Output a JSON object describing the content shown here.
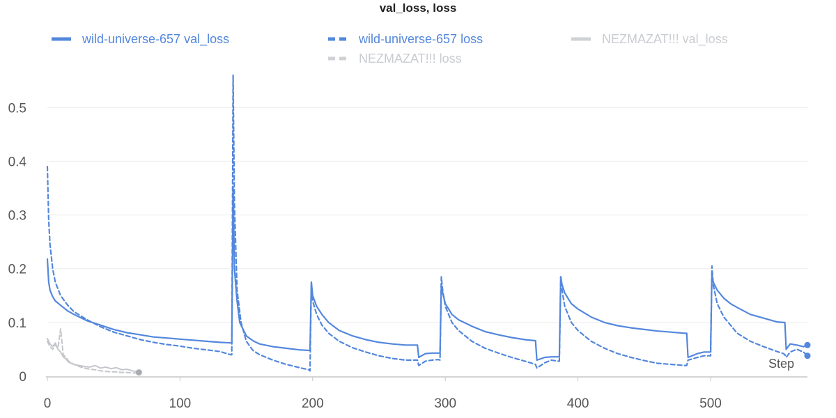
{
  "chart_data": {
    "type": "line",
    "title": "val_loss, loss",
    "xlabel": "Step",
    "ylabel": "",
    "xlim": [
      0,
      573
    ],
    "ylim": [
      0,
      0.56
    ],
    "x_ticks": [
      0,
      100,
      200,
      300,
      400,
      500
    ],
    "y_ticks": [
      0,
      0.1,
      0.2,
      0.3,
      0.4,
      0.5
    ],
    "y_tick_labels": [
      "0",
      "0.1",
      "0.2",
      "0.3",
      "0.4",
      "0.5"
    ],
    "grid": true,
    "legend_position": "top",
    "series": [
      {
        "name": "wild-universe-657 val_loss",
        "color": "#5387dd",
        "dash": "solid",
        "faded": false,
        "end_marker": true,
        "x": [
          0,
          1,
          2,
          4,
          6,
          10,
          15,
          20,
          30,
          40,
          50,
          60,
          70,
          80,
          90,
          100,
          110,
          120,
          130,
          138,
          139,
          140,
          141,
          143,
          145,
          150,
          155,
          160,
          170,
          180,
          190,
          197,
          198,
          199,
          200,
          203,
          207,
          212,
          220,
          230,
          240,
          250,
          260,
          270,
          279,
          280,
          285,
          290,
          295,
          296,
          297,
          298,
          300,
          305,
          310,
          320,
          330,
          340,
          350,
          360,
          368,
          369,
          375,
          380,
          385,
          386,
          387,
          388,
          390,
          395,
          400,
          410,
          420,
          430,
          440,
          450,
          460,
          470,
          480,
          482,
          483,
          490,
          495,
          499,
          500,
          501,
          502,
          505,
          510,
          515,
          520,
          530,
          540,
          550,
          555,
          556,
          557,
          560,
          565,
          570,
          573
        ],
        "values": [
          0.218,
          0.175,
          0.16,
          0.148,
          0.14,
          0.132,
          0.122,
          0.115,
          0.103,
          0.095,
          0.087,
          0.081,
          0.077,
          0.073,
          0.071,
          0.069,
          0.067,
          0.065,
          0.063,
          0.062,
          0.062,
          0.35,
          0.2,
          0.14,
          0.1,
          0.075,
          0.066,
          0.06,
          0.055,
          0.052,
          0.049,
          0.048,
          0.048,
          0.175,
          0.15,
          0.13,
          0.115,
          0.1,
          0.085,
          0.075,
          0.068,
          0.063,
          0.06,
          0.058,
          0.058,
          0.035,
          0.042,
          0.043,
          0.043,
          0.043,
          0.17,
          0.155,
          0.135,
          0.115,
          0.105,
          0.093,
          0.083,
          0.077,
          0.072,
          0.068,
          0.066,
          0.03,
          0.035,
          0.036,
          0.036,
          0.036,
          0.185,
          0.17,
          0.155,
          0.135,
          0.125,
          0.11,
          0.1,
          0.094,
          0.09,
          0.087,
          0.084,
          0.082,
          0.08,
          0.08,
          0.035,
          0.042,
          0.045,
          0.045,
          0.045,
          0.19,
          0.175,
          0.16,
          0.145,
          0.135,
          0.128,
          0.115,
          0.108,
          0.101,
          0.1,
          0.1,
          0.05,
          0.06,
          0.058,
          0.055,
          0.058
        ]
      },
      {
        "name": "wild-universe-657 loss",
        "color": "#5387dd",
        "dash": "dashed",
        "faded": false,
        "end_marker": true,
        "x": [
          0,
          1,
          2,
          4,
          6,
          10,
          15,
          20,
          30,
          40,
          50,
          60,
          70,
          80,
          90,
          100,
          110,
          120,
          130,
          138,
          139,
          140,
          141,
          143,
          146,
          150,
          155,
          160,
          170,
          180,
          190,
          197,
          198,
          199,
          200,
          203,
          207,
          212,
          220,
          230,
          240,
          250,
          260,
          270,
          279,
          280,
          285,
          290,
          295,
          296,
          297,
          298,
          300,
          305,
          310,
          320,
          330,
          340,
          350,
          360,
          368,
          369,
          375,
          380,
          385,
          386,
          387,
          388,
          390,
          395,
          400,
          410,
          420,
          430,
          440,
          450,
          460,
          470,
          480,
          482,
          483,
          490,
          495,
          499,
          500,
          501,
          502,
          505,
          510,
          515,
          520,
          530,
          540,
          550,
          555,
          556,
          557,
          560,
          565,
          570,
          573
        ],
        "values": [
          0.39,
          0.29,
          0.245,
          0.2,
          0.175,
          0.15,
          0.133,
          0.12,
          0.105,
          0.092,
          0.082,
          0.075,
          0.068,
          0.063,
          0.059,
          0.056,
          0.052,
          0.049,
          0.046,
          0.04,
          0.04,
          0.56,
          0.32,
          0.16,
          0.1,
          0.065,
          0.048,
          0.04,
          0.03,
          0.022,
          0.016,
          0.012,
          0.01,
          0.175,
          0.14,
          0.115,
          0.095,
          0.08,
          0.065,
          0.053,
          0.045,
          0.038,
          0.033,
          0.03,
          0.03,
          0.02,
          0.028,
          0.03,
          0.031,
          0.03,
          0.185,
          0.16,
          0.13,
          0.1,
          0.085,
          0.065,
          0.052,
          0.043,
          0.035,
          0.028,
          0.022,
          0.015,
          0.025,
          0.03,
          0.028,
          0.028,
          0.185,
          0.16,
          0.13,
          0.1,
          0.085,
          0.065,
          0.052,
          0.042,
          0.035,
          0.029,
          0.024,
          0.022,
          0.02,
          0.02,
          0.03,
          0.035,
          0.038,
          0.038,
          0.038,
          0.205,
          0.17,
          0.135,
          0.11,
          0.095,
          0.08,
          0.065,
          0.055,
          0.046,
          0.042,
          0.04,
          0.035,
          0.045,
          0.05,
          0.045,
          0.038
        ]
      },
      {
        "name": "NEZMAZAT!!! val_loss",
        "color": "#c4c6cb",
        "dash": "solid",
        "faded": true,
        "end_marker": true,
        "x": [
          0,
          2,
          4,
          6,
          8,
          10,
          12,
          14,
          16,
          20,
          24,
          28,
          32,
          36,
          40,
          44,
          48,
          52,
          56,
          60,
          64,
          68,
          69
        ],
        "values": [
          0.07,
          0.06,
          0.055,
          0.062,
          0.05,
          0.045,
          0.036,
          0.032,
          0.026,
          0.022,
          0.02,
          0.018,
          0.017,
          0.02,
          0.015,
          0.017,
          0.014,
          0.016,
          0.012,
          0.013,
          0.01,
          0.008,
          0.007
        ]
      },
      {
        "name": "NEZMAZAT!!! loss",
        "color": "#c4c6cb",
        "dash": "dashed",
        "faded": true,
        "end_marker": false,
        "x": [
          0,
          2,
          4,
          6,
          8,
          10,
          12,
          14,
          16,
          20,
          24,
          28,
          32,
          36,
          40,
          44,
          48,
          52,
          56,
          60,
          64,
          68
        ],
        "values": [
          0.065,
          0.055,
          0.05,
          0.058,
          0.052,
          0.088,
          0.04,
          0.035,
          0.028,
          0.022,
          0.018,
          0.015,
          0.013,
          0.012,
          0.01,
          0.009,
          0.008,
          0.008,
          0.007,
          0.007,
          0.006,
          0.006
        ]
      }
    ]
  }
}
